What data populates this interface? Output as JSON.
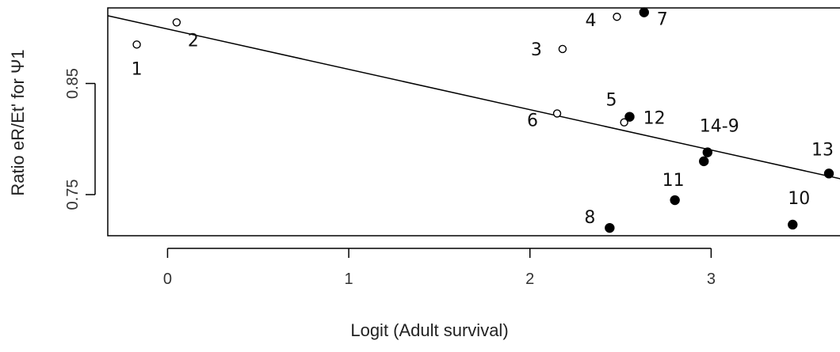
{
  "chart_data": {
    "type": "scatter",
    "xlabel": "Logit (Adult survival)",
    "ylabel": "Ratio eR/Et' for Ψ1",
    "xlim": [
      -0.33,
      3.72
    ],
    "ylim": [
      0.713,
      0.918
    ],
    "x_ticks": [
      0,
      1,
      2,
      3
    ],
    "x_tick_labels": [
      "0",
      "1",
      "2",
      "3"
    ],
    "y_ticks": [
      0.75,
      0.85
    ],
    "y_tick_labels": [
      "0.75",
      "0.85"
    ],
    "grid": false,
    "legend": "none",
    "series": [
      {
        "marker": "open-circle",
        "points": [
          {
            "label": "1",
            "x": -0.17,
            "y": 0.885
          },
          {
            "label": "2",
            "x": 0.05,
            "y": 0.905
          },
          {
            "label": "3",
            "x": 2.18,
            "y": 0.881
          },
          {
            "label": "4",
            "x": 2.48,
            "y": 0.91
          },
          {
            "label": "6",
            "x": 2.15,
            "y": 0.823
          },
          {
            "label": "12",
            "x": 2.52,
            "y": 0.815
          }
        ]
      },
      {
        "marker": "filled-circle",
        "points": [
          {
            "label": "5",
            "x": 2.55,
            "y": 0.82
          },
          {
            "label": "7",
            "x": 2.63,
            "y": 0.914
          },
          {
            "label": "8",
            "x": 2.44,
            "y": 0.72
          },
          {
            "label": "9",
            "x": 2.98,
            "y": 0.788
          },
          {
            "label": "14",
            "x": 2.96,
            "y": 0.78
          },
          {
            "label": "11",
            "x": 2.8,
            "y": 0.745
          },
          {
            "label": "10",
            "x": 3.45,
            "y": 0.723
          },
          {
            "label": "13",
            "x": 3.65,
            "y": 0.769
          }
        ]
      }
    ],
    "fit_line": {
      "x": [
        -0.33,
        3.72
      ],
      "y": [
        0.911,
        0.764
      ]
    },
    "point_annotations": [
      "1",
      "2",
      "3",
      "4",
      "5",
      "6",
      "7",
      "8",
      "10",
      "11",
      "12",
      "13",
      "14-9"
    ]
  }
}
